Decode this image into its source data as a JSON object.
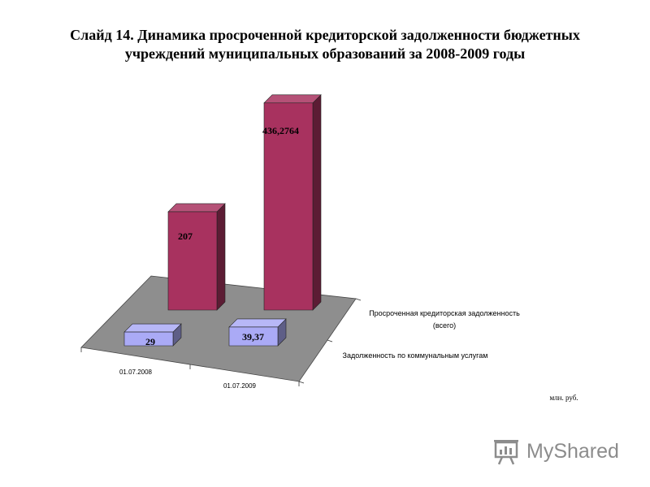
{
  "title": {
    "line1": "Слайд 14. Динамика просроченной кредиторской задолженности бюджетных",
    "line2": "учреждений муниципальных образований  за 2008-2009 годы"
  },
  "colors": {
    "series_overdue": "#a8325f",
    "series_utilities": "#aaaaf6",
    "floor": "#8e8e8e"
  },
  "chart_data": {
    "type": "bar",
    "style": "3d-column",
    "categories": [
      "01.07.2008",
      "01.07.2009"
    ],
    "series": [
      {
        "name": "Просроченная кредиторская задолженность (всего)",
        "values": [
          207,
          436.2764
        ],
        "labels": [
          "207",
          "436,2764"
        ]
      },
      {
        "name": "Задолженность по коммунальным услугам",
        "values": [
          29,
          39.37
        ],
        "labels": [
          "29",
          "39,37"
        ]
      }
    ],
    "series_axis_labels": [
      "Просроченная кредиторская задолженность",
      "(всего)",
      "Задолженность по коммунальным услугам"
    ],
    "unit_label": "млн. руб.",
    "grid": false
  },
  "watermark": {
    "text": "MyShared"
  }
}
